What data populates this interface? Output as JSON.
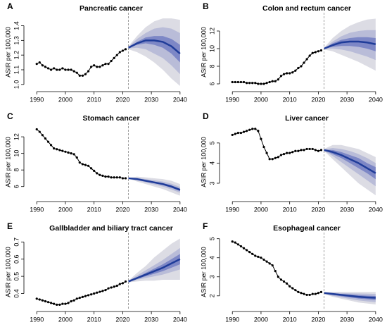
{
  "chart_data": [
    {
      "type": "line",
      "label": "A",
      "title": "Pancreatic cancer",
      "y_label": "ASIR per 100,000",
      "xlim": [
        1987,
        2042
      ],
      "xticks": [
        1990,
        2000,
        2010,
        2020,
        2030,
        2040
      ],
      "ylim": [
        0.98,
        1.46
      ],
      "yticks": [
        {
          "value": 1,
          "label": "1.0"
        },
        1.1,
        1.2,
        1.3,
        1.4
      ],
      "projection_start": 2022,
      "x": [
        1990,
        1991,
        1992,
        1993,
        1994,
        1995,
        1996,
        1997,
        1998,
        1999,
        2000,
        2001,
        2002,
        2003,
        2004,
        2005,
        2006,
        2007,
        2008,
        2009,
        2010,
        2011,
        2012,
        2013,
        2014,
        2015,
        2016,
        2017,
        2018,
        2019,
        2020,
        2021
      ],
      "values": [
        1.14,
        1.15,
        1.13,
        1.12,
        1.11,
        1.1,
        1.11,
        1.1,
        1.1,
        1.11,
        1.1,
        1.1,
        1.1,
        1.09,
        1.08,
        1.06,
        1.06,
        1.07,
        1.09,
        1.12,
        1.13,
        1.12,
        1.12,
        1.13,
        1.14,
        1.14,
        1.16,
        1.18,
        1.2,
        1.22,
        1.23,
        1.24
      ],
      "color": "#000000",
      "projection_x": [
        2022,
        2025,
        2028,
        2031,
        2034,
        2037,
        2040
      ],
      "projection": [
        1.25,
        1.28,
        1.3,
        1.3,
        1.29,
        1.26,
        1.21
      ],
      "projection_color": "#1f3c99",
      "bands": [
        {
          "color": "#dcdce4",
          "lower": [
            1.24,
            1.22,
            1.19,
            1.15,
            1.1,
            1.04,
            0.99
          ],
          "upper": [
            1.26,
            1.33,
            1.39,
            1.43,
            1.45,
            1.45,
            1.44
          ]
        },
        {
          "color": "#b9bcd8",
          "lower": [
            1.245,
            1.25,
            1.24,
            1.21,
            1.18,
            1.13,
            1.07
          ],
          "upper": [
            1.255,
            1.31,
            1.35,
            1.38,
            1.39,
            1.38,
            1.35
          ]
        },
        {
          "color": "#7d87c6",
          "lower": [
            1.248,
            1.27,
            1.28,
            1.27,
            1.25,
            1.21,
            1.15
          ],
          "upper": [
            1.252,
            1.29,
            1.32,
            1.33,
            1.33,
            1.31,
            1.27
          ]
        }
      ]
    },
    {
      "type": "line",
      "label": "B",
      "title": "Colon and rectum cancer",
      "y_label": "ASIR per 100,000",
      "xlim": [
        1987,
        2042
      ],
      "xticks": [
        1990,
        2000,
        2010,
        2020,
        2030,
        2040
      ],
      "ylim": [
        5.6,
        13.6
      ],
      "yticks": [
        6,
        8,
        10,
        12
      ],
      "projection_start": 2022,
      "x": [
        1990,
        1991,
        1992,
        1993,
        1994,
        1995,
        1996,
        1997,
        1998,
        1999,
        2000,
        2001,
        2002,
        2003,
        2004,
        2005,
        2006,
        2007,
        2008,
        2009,
        2010,
        2011,
        2012,
        2013,
        2014,
        2015,
        2016,
        2017,
        2018,
        2019,
        2020,
        2021
      ],
      "values": [
        6.2,
        6.2,
        6.2,
        6.2,
        6.2,
        6.1,
        6.1,
        6.1,
        6.1,
        6.0,
        6.0,
        6.0,
        6.1,
        6.2,
        6.3,
        6.3,
        6.5,
        6.9,
        7.1,
        7.2,
        7.2,
        7.3,
        7.5,
        7.8,
        8.0,
        8.4,
        8.8,
        9.2,
        9.5,
        9.6,
        9.7,
        9.8
      ],
      "color": "#000000",
      "projection_x": [
        2022,
        2025,
        2028,
        2031,
        2034,
        2037,
        2040
      ],
      "projection": [
        10.0,
        10.4,
        10.7,
        10.8,
        10.8,
        10.7,
        10.5
      ],
      "projection_color": "#1f3c99",
      "bands": [
        {
          "color": "#dcdce4",
          "lower": [
            9.9,
            9.7,
            9.3,
            8.9,
            8.5,
            8.0,
            7.5
          ],
          "upper": [
            10.1,
            11.2,
            12.0,
            12.6,
            13.0,
            13.3,
            13.4
          ]
        },
        {
          "color": "#b9bcd8",
          "lower": [
            9.95,
            10.0,
            9.9,
            9.7,
            9.4,
            9.1,
            8.7
          ],
          "upper": [
            10.05,
            10.8,
            11.4,
            11.8,
            12.0,
            12.1,
            12.1
          ]
        },
        {
          "color": "#7d87c6",
          "lower": [
            9.98,
            10.2,
            10.3,
            10.3,
            10.2,
            10.0,
            9.7
          ],
          "upper": [
            10.02,
            10.6,
            11.0,
            11.2,
            11.3,
            11.3,
            11.2
          ]
        }
      ]
    },
    {
      "type": "line",
      "label": "C",
      "title": "Stomach cancer",
      "y_label": "ASIR per 100,000",
      "xlim": [
        1987,
        2042
      ],
      "xticks": [
        1990,
        2000,
        2010,
        2020,
        2030,
        2040
      ],
      "ylim": [
        4.7,
        13.2
      ],
      "yticks": [
        6,
        8,
        10,
        12
      ],
      "projection_start": 2022,
      "x": [
        1990,
        1991,
        1992,
        1993,
        1994,
        1995,
        1996,
        1997,
        1998,
        1999,
        2000,
        2001,
        2002,
        2003,
        2004,
        2005,
        2006,
        2007,
        2008,
        2009,
        2010,
        2011,
        2012,
        2013,
        2014,
        2015,
        2016,
        2017,
        2018,
        2019,
        2020,
        2021
      ],
      "values": [
        12.9,
        12.6,
        12.2,
        11.8,
        11.4,
        11.0,
        10.6,
        10.5,
        10.4,
        10.3,
        10.2,
        10.1,
        10.0,
        9.9,
        9.5,
        8.9,
        8.7,
        8.6,
        8.5,
        8.2,
        7.9,
        7.6,
        7.4,
        7.3,
        7.2,
        7.2,
        7.1,
        7.1,
        7.1,
        7.1,
        7.0,
        7.0
      ],
      "color": "#000000",
      "projection_x": [
        2022,
        2025,
        2028,
        2031,
        2034,
        2037,
        2040
      ],
      "projection": [
        7.0,
        6.9,
        6.7,
        6.5,
        6.3,
        6.0,
        5.6
      ],
      "projection_color": "#1f3c99",
      "bands": [
        {
          "color": "#dcdce4",
          "lower": [
            6.95,
            6.6,
            6.3,
            6.0,
            5.7,
            5.3,
            4.9
          ],
          "upper": [
            7.05,
            7.2,
            7.1,
            7.0,
            6.9,
            6.7,
            6.3
          ]
        },
        {
          "color": "#b9bcd8",
          "lower": [
            6.97,
            6.75,
            6.5,
            6.25,
            6.0,
            5.65,
            5.25
          ],
          "upper": [
            7.03,
            7.05,
            6.9,
            6.75,
            6.6,
            6.35,
            5.95
          ]
        },
        {
          "color": "#7d87c6",
          "lower": [
            6.99,
            6.85,
            6.62,
            6.4,
            6.18,
            5.85,
            5.45
          ],
          "upper": [
            7.01,
            6.95,
            6.78,
            6.6,
            6.42,
            6.15,
            5.75
          ]
        }
      ]
    },
    {
      "type": "line",
      "label": "D",
      "title": "Liver cancer",
      "y_label": "ASIR per 100,000",
      "xlim": [
        1987,
        2042
      ],
      "xticks": [
        1990,
        2000,
        2010,
        2020,
        2030,
        2040
      ],
      "ylim": [
        2.3,
        5.8
      ],
      "yticks": [
        3,
        4,
        5
      ],
      "projection_start": 2022,
      "x": [
        1990,
        1991,
        1992,
        1993,
        1994,
        1995,
        1996,
        1997,
        1998,
        1999,
        2000,
        2001,
        2002,
        2003,
        2004,
        2005,
        2006,
        2007,
        2008,
        2009,
        2010,
        2011,
        2012,
        2013,
        2014,
        2015,
        2016,
        2017,
        2018,
        2019,
        2020,
        2021
      ],
      "values": [
        5.4,
        5.45,
        5.5,
        5.5,
        5.55,
        5.6,
        5.65,
        5.7,
        5.7,
        5.6,
        5.2,
        4.8,
        4.5,
        4.2,
        4.2,
        4.25,
        4.3,
        4.4,
        4.45,
        4.5,
        4.5,
        4.55,
        4.6,
        4.6,
        4.65,
        4.65,
        4.7,
        4.7,
        4.7,
        4.65,
        4.6,
        4.65
      ],
      "color": "#000000",
      "projection_x": [
        2022,
        2025,
        2028,
        2031,
        2034,
        2037,
        2040
      ],
      "projection": [
        4.65,
        4.55,
        4.4,
        4.2,
        4.0,
        3.75,
        3.5
      ],
      "projection_color": "#1f3c99",
      "bands": [
        {
          "color": "#dcdce4",
          "lower": [
            4.6,
            4.2,
            3.8,
            3.4,
            3.0,
            2.7,
            2.4
          ],
          "upper": [
            4.7,
            4.9,
            4.9,
            4.8,
            4.7,
            4.5,
            4.3
          ]
        },
        {
          "color": "#b9bcd8",
          "lower": [
            4.62,
            4.35,
            4.05,
            3.75,
            3.45,
            3.15,
            2.85
          ],
          "upper": [
            4.68,
            4.75,
            4.7,
            4.6,
            4.45,
            4.25,
            4.0
          ]
        },
        {
          "color": "#7d87c6",
          "lower": [
            4.64,
            4.45,
            4.25,
            4.0,
            3.75,
            3.5,
            3.2
          ],
          "upper": [
            4.66,
            4.65,
            4.55,
            4.4,
            4.25,
            4.0,
            3.8
          ]
        }
      ]
    },
    {
      "type": "line",
      "label": "E",
      "title": "Gallbladder and biliary tract cancer",
      "y_label": "ASIR per 100,000",
      "xlim": [
        1987,
        2042
      ],
      "xticks": [
        1990,
        2000,
        2010,
        2020,
        2030,
        2040
      ],
      "ylim": [
        0.32,
        0.73
      ],
      "yticks": [
        0.4,
        0.5,
        0.6,
        0.7
      ],
      "projection_start": 2022,
      "x": [
        1990,
        1991,
        1992,
        1993,
        1994,
        1995,
        1996,
        1997,
        1998,
        1999,
        2000,
        2001,
        2002,
        2003,
        2004,
        2005,
        2006,
        2007,
        2008,
        2009,
        2010,
        2011,
        2012,
        2013,
        2014,
        2015,
        2016,
        2017,
        2018,
        2019,
        2020,
        2021
      ],
      "values": [
        0.37,
        0.365,
        0.36,
        0.355,
        0.35,
        0.345,
        0.34,
        0.335,
        0.335,
        0.34,
        0.34,
        0.345,
        0.355,
        0.36,
        0.37,
        0.375,
        0.38,
        0.385,
        0.39,
        0.395,
        0.4,
        0.405,
        0.41,
        0.415,
        0.42,
        0.43,
        0.435,
        0.44,
        0.445,
        0.455,
        0.46,
        0.47
      ],
      "color": "#000000",
      "projection_x": [
        2022,
        2025,
        2028,
        2031,
        2034,
        2037,
        2040
      ],
      "projection": [
        0.47,
        0.49,
        0.51,
        0.53,
        0.55,
        0.575,
        0.6
      ],
      "projection_color": "#1f3c99",
      "bands": [
        {
          "color": "#dcdce4",
          "lower": [
            0.465,
            0.47,
            0.475,
            0.475,
            0.48,
            0.48,
            0.48
          ],
          "upper": [
            0.475,
            0.52,
            0.56,
            0.61,
            0.65,
            0.69,
            0.72
          ]
        },
        {
          "color": "#b9bcd8",
          "lower": [
            0.467,
            0.48,
            0.49,
            0.5,
            0.51,
            0.525,
            0.54
          ],
          "upper": [
            0.473,
            0.505,
            0.535,
            0.565,
            0.595,
            0.63,
            0.665
          ]
        },
        {
          "color": "#7d87c6",
          "lower": [
            0.469,
            0.485,
            0.5,
            0.515,
            0.53,
            0.55,
            0.57
          ],
          "upper": [
            0.471,
            0.495,
            0.52,
            0.545,
            0.57,
            0.6,
            0.63
          ]
        }
      ]
    },
    {
      "type": "line",
      "label": "F",
      "title": "Esophageal cancer",
      "y_label": "ASIR per 100,000",
      "xlim": [
        1987,
        2042
      ],
      "xticks": [
        1990,
        2000,
        2010,
        2020,
        2030,
        2040
      ],
      "ylim": [
        1.4,
        5.1
      ],
      "yticks": [
        2,
        3,
        4,
        5
      ],
      "projection_start": 2022,
      "x": [
        1990,
        1991,
        1992,
        1993,
        1994,
        1995,
        1996,
        1997,
        1998,
        1999,
        2000,
        2001,
        2002,
        2003,
        2004,
        2005,
        2006,
        2007,
        2008,
        2009,
        2010,
        2011,
        2012,
        2013,
        2014,
        2015,
        2016,
        2017,
        2018,
        2019,
        2020,
        2021
      ],
      "values": [
        4.85,
        4.8,
        4.7,
        4.6,
        4.5,
        4.4,
        4.3,
        4.2,
        4.1,
        4.05,
        4.0,
        3.9,
        3.8,
        3.7,
        3.6,
        3.3,
        3.0,
        2.85,
        2.75,
        2.65,
        2.5,
        2.4,
        2.3,
        2.2,
        2.15,
        2.1,
        2.05,
        2.05,
        2.1,
        2.1,
        2.15,
        2.2
      ],
      "color": "#000000",
      "projection_x": [
        2022,
        2025,
        2028,
        2031,
        2034,
        2037,
        2040
      ],
      "projection": [
        2.15,
        2.1,
        2.05,
        2.0,
        1.95,
        1.92,
        1.9
      ],
      "projection_color": "#1f3c99",
      "bands": [
        {
          "color": "#dcdce4",
          "lower": [
            2.1,
            1.95,
            1.85,
            1.75,
            1.65,
            1.6,
            1.55
          ],
          "upper": [
            2.2,
            2.2,
            2.2,
            2.2,
            2.2,
            2.2,
            2.2
          ]
        },
        {
          "color": "#b9bcd8",
          "lower": [
            2.12,
            2.0,
            1.92,
            1.84,
            1.76,
            1.71,
            1.67
          ],
          "upper": [
            2.18,
            2.17,
            2.15,
            2.13,
            2.12,
            2.11,
            2.1
          ]
        },
        {
          "color": "#7d87c6",
          "lower": [
            2.13,
            2.05,
            1.98,
            1.92,
            1.86,
            1.82,
            1.78
          ],
          "upper": [
            2.17,
            2.14,
            2.1,
            2.07,
            2.04,
            2.01,
            1.99
          ]
        }
      ]
    }
  ]
}
